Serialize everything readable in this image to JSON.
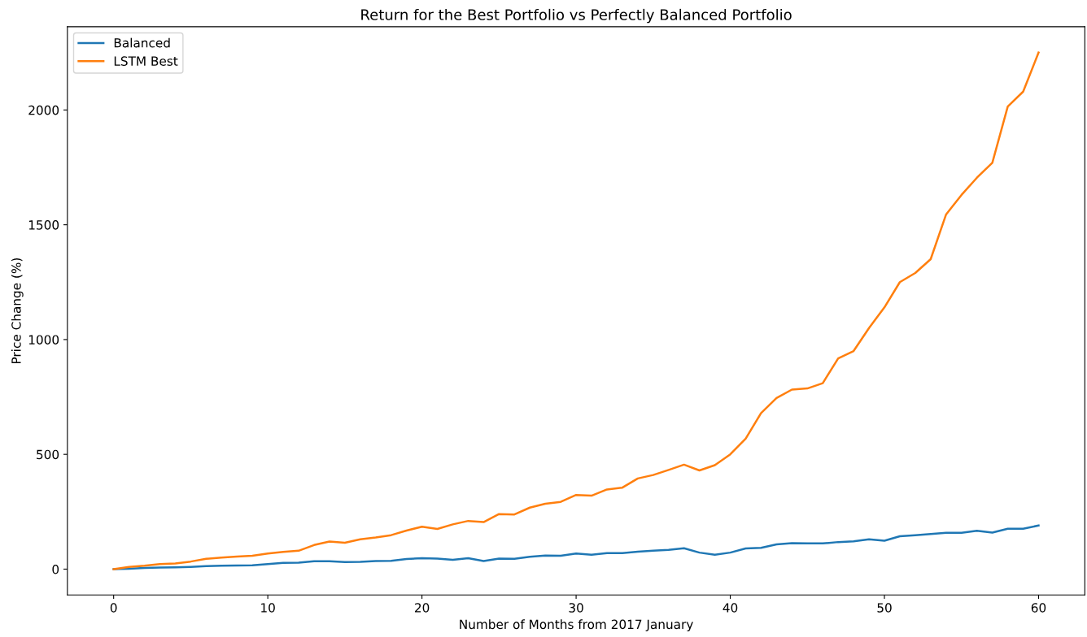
{
  "chart_data": {
    "type": "line",
    "title": "Return for the Best Portfolio vs Perfectly Balanced Portfolio",
    "xlabel": "Number of Months from 2017 January",
    "ylabel": "Price Change (%)",
    "x": [
      0,
      1,
      2,
      3,
      4,
      5,
      6,
      7,
      8,
      9,
      10,
      11,
      12,
      13,
      14,
      15,
      16,
      17,
      18,
      19,
      20,
      21,
      22,
      23,
      24,
      25,
      26,
      27,
      28,
      29,
      30,
      31,
      32,
      33,
      34,
      35,
      36,
      37,
      38,
      39,
      40,
      41,
      42,
      43,
      44,
      45,
      46,
      47,
      48,
      49,
      50,
      51,
      52,
      53,
      54,
      55,
      56,
      57,
      58,
      59,
      60
    ],
    "series": [
      {
        "name": "Balanced",
        "color": "#1f77b4",
        "values": [
          0,
          2,
          5,
          7,
          8,
          10,
          13,
          15,
          16,
          17,
          22,
          27,
          28,
          34,
          34,
          31,
          32,
          35,
          36,
          44,
          48,
          46,
          41,
          48,
          35,
          46,
          45,
          54,
          59,
          58,
          68,
          63,
          70,
          70,
          76,
          80,
          84,
          91,
          72,
          63,
          72,
          90,
          93,
          108,
          113,
          112,
          112,
          118,
          121,
          130,
          124,
          143,
          148,
          153,
          158,
          158,
          167,
          159,
          176,
          176,
          190
        ]
      },
      {
        "name": "LSTM Best",
        "color": "#ff7f0e",
        "values": [
          0,
          10,
          15,
          22,
          25,
          33,
          45,
          50,
          55,
          58,
          68,
          75,
          80,
          105,
          120,
          115,
          130,
          138,
          148,
          168,
          185,
          175,
          195,
          210,
          205,
          240,
          238,
          268,
          285,
          293,
          323,
          320,
          347,
          355,
          395,
          410,
          432,
          455,
          430,
          453,
          500,
          568,
          680,
          745,
          782,
          787,
          810,
          918,
          950,
          1050,
          1140,
          1250,
          1290,
          1350,
          1545,
          1630,
          1705,
          1770,
          2015,
          2080,
          2250
        ]
      }
    ],
    "xlim": [
      -3,
      63
    ],
    "ylim": [
      -112.5,
      2362.5
    ],
    "xticks": [
      0,
      10,
      20,
      30,
      40,
      50,
      60
    ],
    "yticks": [
      0,
      500,
      1000,
      1500,
      2000
    ],
    "legend": "top left",
    "grid": false
  }
}
